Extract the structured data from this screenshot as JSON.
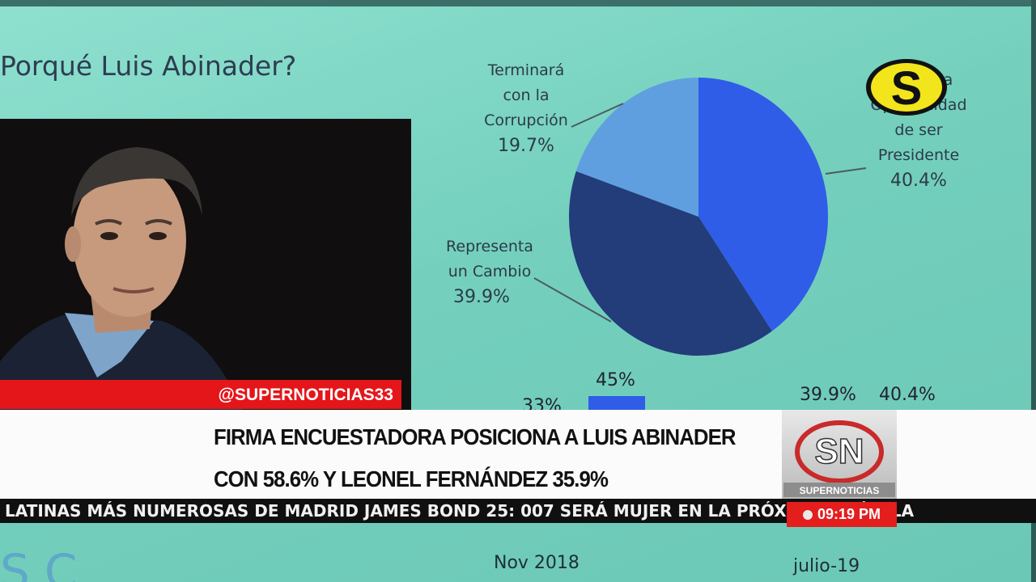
{
  "slide": {
    "title": "Porqué Luis Abinader?",
    "pie": [
      {
        "label_lines": [
          "Terminará",
          "con la",
          "Corrupción"
        ],
        "pct": "19.7%",
        "value": 19.7,
        "color": "#5f9fe0"
      },
      {
        "label_lines": [
          "Representa",
          "un Cambio"
        ],
        "pct": "39.9%",
        "value": 39.9,
        "color": "#233c7a"
      },
      {
        "label_lines": [
          "…ne una",
          "Oportunidad",
          "de ser",
          "Presidente"
        ],
        "pct": "40.4%",
        "value": 40.4,
        "color": "#2f5de8"
      }
    ],
    "behind_bar_values": [
      "45%",
      "39.9%",
      "40.4%"
    ],
    "partial_left_value": "33%",
    "x_labels": [
      "Nov 2018",
      "julio-19"
    ],
    "left_letters": "SC"
  },
  "overlay": {
    "handle": "@SUPERNOTICIAS33",
    "headline_line1": "FIRMA ENCUESTADORA POSICIONA A LUIS ABINADER",
    "headline_line2": "CON 58.6% Y LEONEL FERNÁNDEZ 35.9%",
    "brand_letters": "SN",
    "brand_name": "SUPERNOTICIAS",
    "ticker": "LATINAS MÁS NUMEROSAS DE MADRID   JAMES BOND 25: 007 SERÁ MUJER EN LA PRÓXIMA PELÍCULA",
    "time": "09:19 PM",
    "logo_letter": "S"
  }
}
